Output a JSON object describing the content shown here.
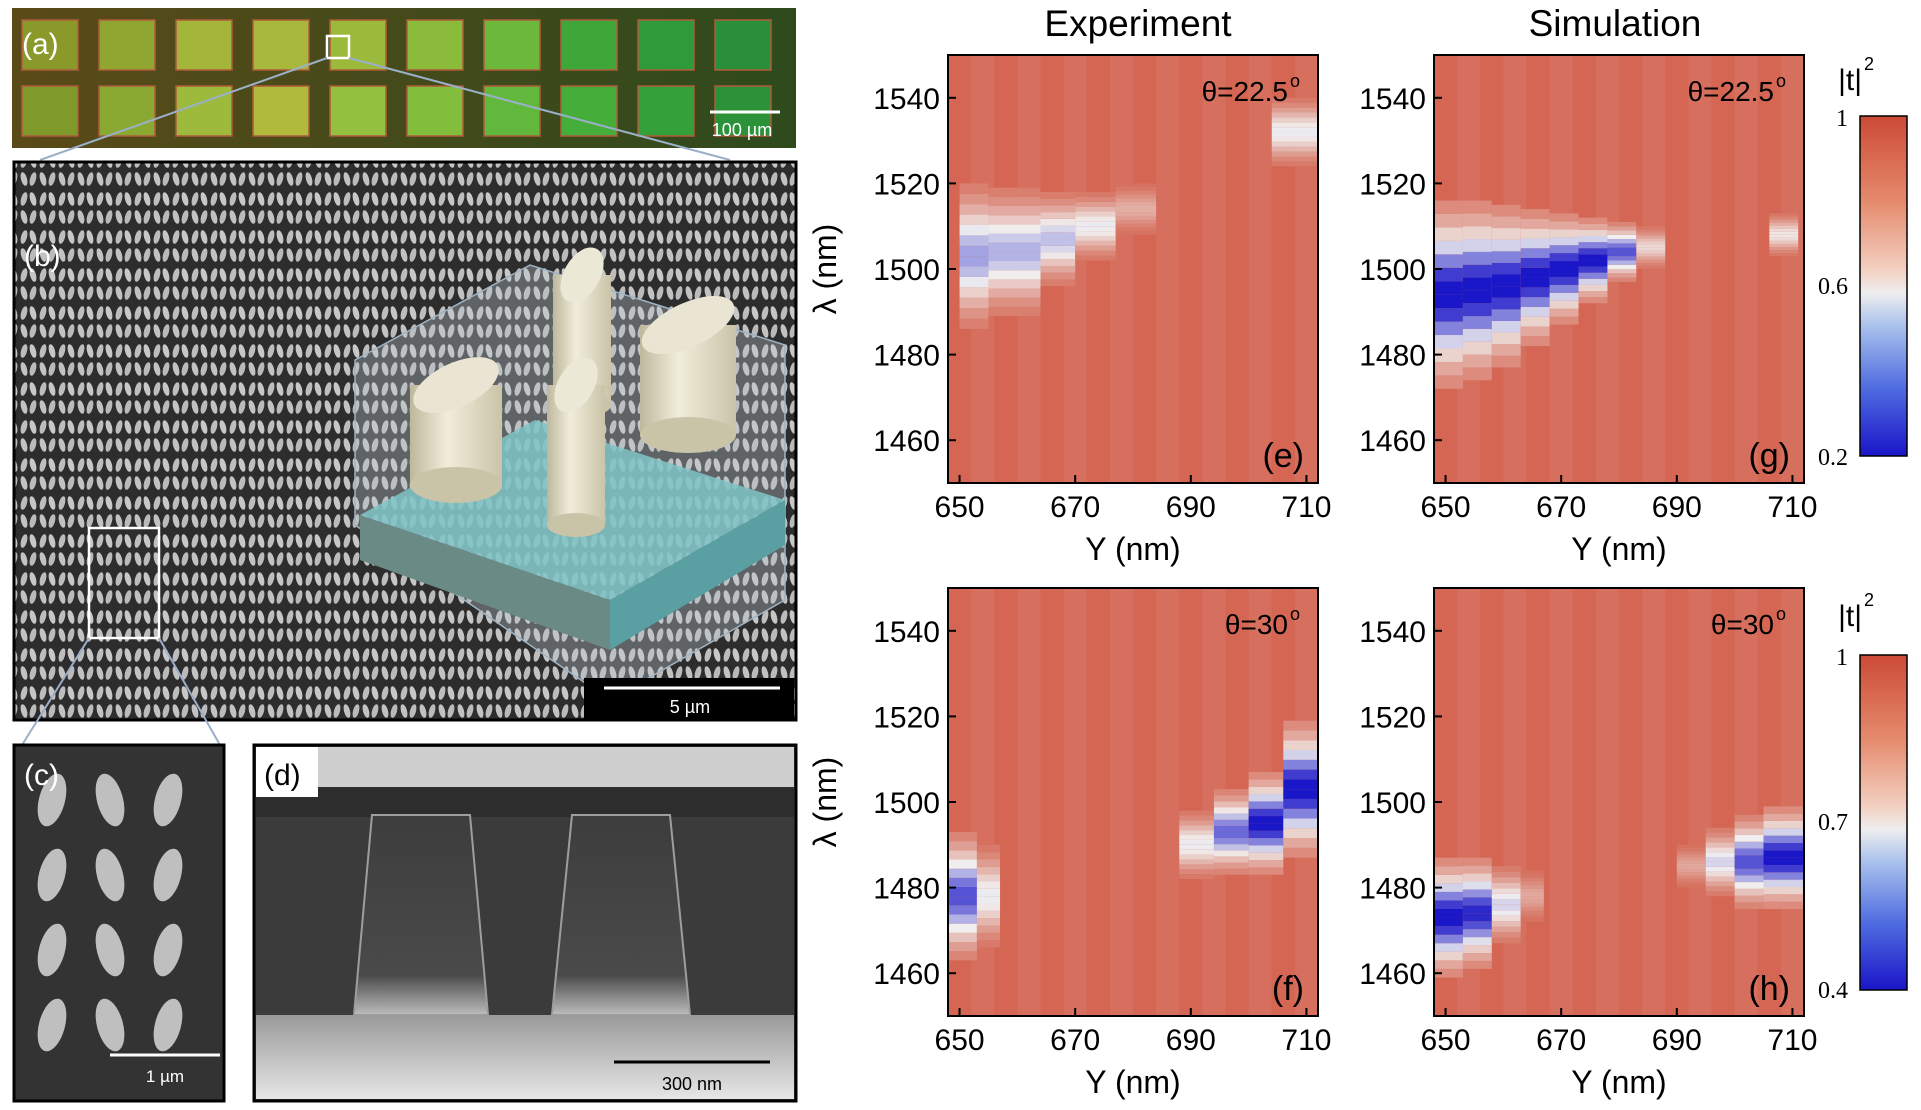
{
  "panels": {
    "a": {
      "label": "(a)",
      "scale_bar": "100 µm",
      "pad_colors": [
        [
          "#8a9a2a",
          "#8fa630",
          "#a3b63a",
          "#a8b83c",
          "#9bb93a",
          "#8bbb3a",
          "#6cb83a",
          "#3fa73a",
          "#2f9a3a",
          "#2a8f3a"
        ],
        [
          "#7f9a2a",
          "#8aa932",
          "#9dba3c",
          "#b0bb3e",
          "#93c03e",
          "#82bd3c",
          "#62b83c",
          "#45ad3a",
          "#34a03a",
          "#2b923a"
        ]
      ]
    },
    "b": {
      "label": "(b)",
      "scale_bar": "5 µm"
    },
    "c": {
      "label": "(c)",
      "scale_bar": "1 µm"
    },
    "d": {
      "label": "(d)",
      "scale_bar": "300 nm"
    }
  },
  "column_titles": {
    "experiment": "Experiment",
    "simulation": "Simulation"
  },
  "colorbars": [
    {
      "title": "|t|",
      "sup": "2",
      "ticks": [
        "1",
        "0.6",
        "0.2"
      ],
      "range": [
        0.2,
        1
      ]
    },
    {
      "title": "|t|",
      "sup": "2",
      "ticks": [
        "1",
        "0.7",
        "0.4"
      ],
      "range": [
        0.4,
        1
      ]
    }
  ],
  "colors": {
    "high": "#d0553f",
    "mid": "#f1f1f1",
    "low": "#1a17c8"
  },
  "chart_data": [
    {
      "id": "e",
      "type": "heatmap",
      "label": "(e)",
      "annotation": "θ=22.5",
      "annotation_sup": "o",
      "xlabel": "Y (nm)",
      "ylabel": "λ (nm)",
      "xlim": [
        648,
        712
      ],
      "ylim": [
        1450,
        1550
      ],
      "xticks": [
        "650",
        "670",
        "690",
        "710"
      ],
      "yticks": [
        "1460",
        "1480",
        "1500",
        "1520",
        "1540"
      ],
      "dips": [
        {
          "x0": 650,
          "x1": 655,
          "c": 1503,
          "w": 17,
          "d": 0.62
        },
        {
          "x0": 655,
          "x1": 664,
          "c": 1504,
          "w": 15,
          "d": 0.58
        },
        {
          "x0": 664,
          "x1": 670,
          "c": 1507,
          "w": 11,
          "d": 0.55
        },
        {
          "x0": 670,
          "x1": 677,
          "c": 1510,
          "w": 8,
          "d": 0.45
        },
        {
          "x0": 677,
          "x1": 684,
          "c": 1514,
          "w": 6,
          "d": 0.22
        },
        {
          "x0": 704,
          "x1": 712,
          "c": 1532,
          "w": 8,
          "d": 0.45
        }
      ]
    },
    {
      "id": "g",
      "type": "heatmap",
      "label": "(g)",
      "annotation": "θ=22.5",
      "annotation_sup": "o",
      "xlabel": "Y (nm)",
      "ylabel": "",
      "xlim": [
        648,
        712
      ],
      "ylim": [
        1450,
        1550
      ],
      "xticks": [
        "650",
        "670",
        "690",
        "710"
      ],
      "yticks": [
        "1460",
        "1480",
        "1500",
        "1520",
        "1540"
      ],
      "dips": [
        {
          "x0": 648,
          "x1": 653,
          "c": 1494,
          "w": 22,
          "d": 0.95
        },
        {
          "x0": 653,
          "x1": 658,
          "c": 1495,
          "w": 21,
          "d": 0.95
        },
        {
          "x0": 658,
          "x1": 663,
          "c": 1496,
          "w": 19,
          "d": 0.95
        },
        {
          "x0": 663,
          "x1": 668,
          "c": 1498,
          "w": 16,
          "d": 0.95
        },
        {
          "x0": 668,
          "x1": 673,
          "c": 1500,
          "w": 13,
          "d": 0.95
        },
        {
          "x0": 673,
          "x1": 678,
          "c": 1502,
          "w": 10,
          "d": 0.95
        },
        {
          "x0": 678,
          "x1": 683,
          "c": 1504,
          "w": 7,
          "d": 0.8
        },
        {
          "x0": 683,
          "x1": 688,
          "c": 1505,
          "w": 5,
          "d": 0.35
        },
        {
          "x0": 706,
          "x1": 711,
          "c": 1508,
          "w": 5,
          "d": 0.4
        }
      ]
    },
    {
      "id": "f",
      "type": "heatmap",
      "label": "(f)",
      "annotation": "θ=30",
      "annotation_sup": "o",
      "xlabel": "Y (nm)",
      "ylabel": "λ (nm)",
      "xlim": [
        648,
        712
      ],
      "ylim": [
        1450,
        1550
      ],
      "xticks": [
        "650",
        "670",
        "690",
        "710"
      ],
      "yticks": [
        "1460",
        "1480",
        "1500",
        "1520",
        "1540"
      ],
      "dips": [
        {
          "x0": 648,
          "x1": 653,
          "c": 1478,
          "w": 15,
          "d": 0.8
        },
        {
          "x0": 653,
          "x1": 657,
          "c": 1478,
          "w": 12,
          "d": 0.45
        },
        {
          "x0": 688,
          "x1": 694,
          "c": 1490,
          "w": 8,
          "d": 0.45
        },
        {
          "x0": 694,
          "x1": 700,
          "c": 1493,
          "w": 10,
          "d": 0.75
        },
        {
          "x0": 700,
          "x1": 706,
          "c": 1495,
          "w": 12,
          "d": 0.95
        },
        {
          "x0": 706,
          "x1": 712,
          "c": 1503,
          "w": 16,
          "d": 0.95
        }
      ]
    },
    {
      "id": "h",
      "type": "heatmap",
      "label": "(h)",
      "annotation": "θ=30",
      "annotation_sup": "o",
      "xlabel": "Y (nm)",
      "ylabel": "",
      "xlim": [
        648,
        712
      ],
      "ylim": [
        1450,
        1550
      ],
      "xticks": [
        "650",
        "670",
        "690",
        "710"
      ],
      "yticks": [
        "1460",
        "1480",
        "1500",
        "1520",
        "1540"
      ],
      "dips": [
        {
          "x0": 648,
          "x1": 653,
          "c": 1473,
          "w": 14,
          "d": 0.95
        },
        {
          "x0": 653,
          "x1": 658,
          "c": 1474,
          "w": 13,
          "d": 0.9
        },
        {
          "x0": 658,
          "x1": 663,
          "c": 1476,
          "w": 9,
          "d": 0.5
        },
        {
          "x0": 663,
          "x1": 667,
          "c": 1478,
          "w": 6,
          "d": 0.2
        },
        {
          "x0": 690,
          "x1": 695,
          "c": 1485,
          "w": 5,
          "d": 0.2
        },
        {
          "x0": 695,
          "x1": 700,
          "c": 1486,
          "w": 8,
          "d": 0.5
        },
        {
          "x0": 700,
          "x1": 705,
          "c": 1486,
          "w": 11,
          "d": 0.8
        },
        {
          "x0": 705,
          "x1": 712,
          "c": 1487,
          "w": 12,
          "d": 0.95
        }
      ]
    }
  ]
}
